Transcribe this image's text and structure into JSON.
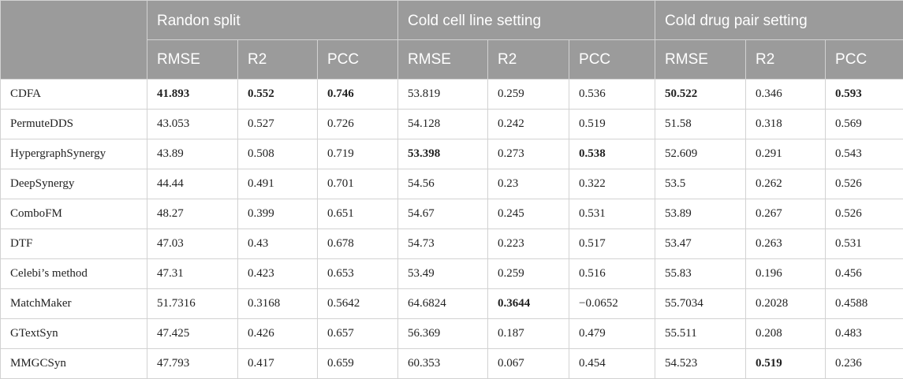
{
  "table": {
    "groups": [
      "Randon split",
      "Cold cell line setting",
      "Cold drug pair setting"
    ],
    "metrics": [
      "RMSE",
      "R2",
      "PCC",
      "RMSE",
      "R2",
      "PCC",
      "RMSE",
      "R2",
      "PCC"
    ],
    "rows": [
      {
        "method": "CDFA",
        "values": [
          "41.893",
          "0.552",
          "0.746",
          "53.819",
          "0.259",
          "0.536",
          "50.522",
          "0.346",
          "0.593"
        ],
        "bold": [
          0,
          1,
          2,
          6,
          8
        ]
      },
      {
        "method": "PermuteDDS",
        "values": [
          "43.053",
          "0.527",
          "0.726",
          "54.128",
          "0.242",
          "0.519",
          "51.58",
          "0.318",
          "0.569"
        ],
        "bold": []
      },
      {
        "method": "HypergraphSynergy",
        "values": [
          "43.89",
          "0.508",
          "0.719",
          "53.398",
          "0.273",
          "0.538",
          "52.609",
          "0.291",
          "0.543"
        ],
        "bold": [
          3,
          5
        ]
      },
      {
        "method": "DeepSynergy",
        "values": [
          "44.44",
          "0.491",
          "0.701",
          "54.56",
          "0.23",
          "0.322",
          "53.5",
          "0.262",
          "0.526"
        ],
        "bold": []
      },
      {
        "method": "ComboFM",
        "values": [
          "48.27",
          "0.399",
          "0.651",
          "54.67",
          "0.245",
          "0.531",
          "53.89",
          "0.267",
          "0.526"
        ],
        "bold": []
      },
      {
        "method": "DTF",
        "values": [
          "47.03",
          "0.43",
          "0.678",
          "54.73",
          "0.223",
          "0.517",
          "53.47",
          "0.263",
          "0.531"
        ],
        "bold": []
      },
      {
        "method": "Celebi’s method",
        "values": [
          "47.31",
          "0.423",
          "0.653",
          "53.49",
          "0.259",
          "0.516",
          "55.83",
          "0.196",
          "0.456"
        ],
        "bold": []
      },
      {
        "method": "MatchMaker",
        "values": [
          "51.7316",
          "0.3168",
          "0.5642",
          "64.6824",
          "0.3644",
          "−0.0652",
          "55.7034",
          "0.2028",
          "0.4588"
        ],
        "bold": [
          4
        ]
      },
      {
        "method": "GTextSyn",
        "values": [
          "47.425",
          "0.426",
          "0.657",
          "56.369",
          "0.187",
          "0.479",
          "55.511",
          "0.208",
          "0.483"
        ],
        "bold": []
      },
      {
        "method": "MMGCSyn",
        "values": [
          "47.793",
          "0.417",
          "0.659",
          "60.353",
          "0.067",
          "0.454",
          "54.523",
          "0.519",
          "0.236"
        ],
        "bold": [
          7
        ]
      }
    ]
  }
}
